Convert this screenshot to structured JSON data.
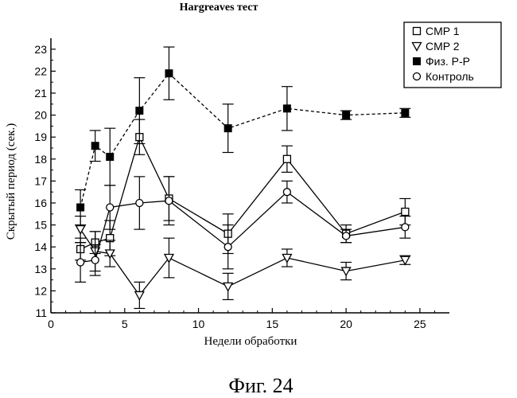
{
  "chart_data": {
    "type": "line",
    "title": "Hargreaves тест",
    "xlabel": "Недели обработки",
    "ylabel": "Скрытый  период (сек.)",
    "xlim": [
      0,
      27
    ],
    "ylim": [
      11,
      23.5
    ],
    "xticks": [
      0,
      5,
      10,
      15,
      20,
      25
    ],
    "yticks": [
      11,
      12,
      13,
      14,
      15,
      16,
      17,
      18,
      19,
      20,
      21,
      22,
      23
    ],
    "grid": false,
    "legend_position": "top-right",
    "series": [
      {
        "name": "CMP 1",
        "marker": "square-open",
        "line": "solid",
        "x": [
          2,
          3,
          4,
          6,
          8,
          12,
          16,
          20,
          24
        ],
        "y": [
          13.9,
          14.2,
          14.4,
          19.0,
          16.2,
          14.6,
          18.0,
          14.6,
          15.6
        ],
        "err": [
          0.5,
          0.5,
          0.8,
          0.8,
          1.0,
          0.9,
          0.6,
          0.4,
          0.6
        ]
      },
      {
        "name": "CMP 2",
        "marker": "triangle-down-open",
        "line": "solid",
        "x": [
          2,
          3,
          4,
          6,
          8,
          12,
          16,
          20,
          24
        ],
        "y": [
          14.8,
          13.8,
          13.7,
          11.8,
          13.5,
          12.2,
          13.5,
          12.9,
          13.4
        ],
        "err": [
          0.6,
          0.9,
          0.6,
          0.6,
          0.9,
          0.6,
          0.4,
          0.4,
          0.2
        ]
      },
      {
        "name": "Физ. Р-Р",
        "marker": "square-filled",
        "line": "dashed",
        "x": [
          2,
          3,
          4,
          6,
          8,
          12,
          16,
          20,
          24
        ],
        "y": [
          15.8,
          18.6,
          18.1,
          20.2,
          21.9,
          19.4,
          20.3,
          20.0,
          20.1
        ],
        "err": [
          0.8,
          0.7,
          1.3,
          1.5,
          1.2,
          1.1,
          1.0,
          0.2,
          0.2
        ]
      },
      {
        "name": "Контроль",
        "marker": "circle-open",
        "line": "solid",
        "x": [
          2,
          3,
          4,
          6,
          8,
          12,
          16,
          20,
          24
        ],
        "y": [
          13.3,
          13.4,
          15.8,
          16.0,
          16.1,
          14.0,
          16.5,
          14.5,
          14.9
        ],
        "err": [
          0.9,
          0.7,
          1.0,
          1.2,
          1.1,
          1.0,
          0.5,
          0.3,
          0.5
        ]
      }
    ]
  },
  "figure_caption": "Фиг. 24"
}
